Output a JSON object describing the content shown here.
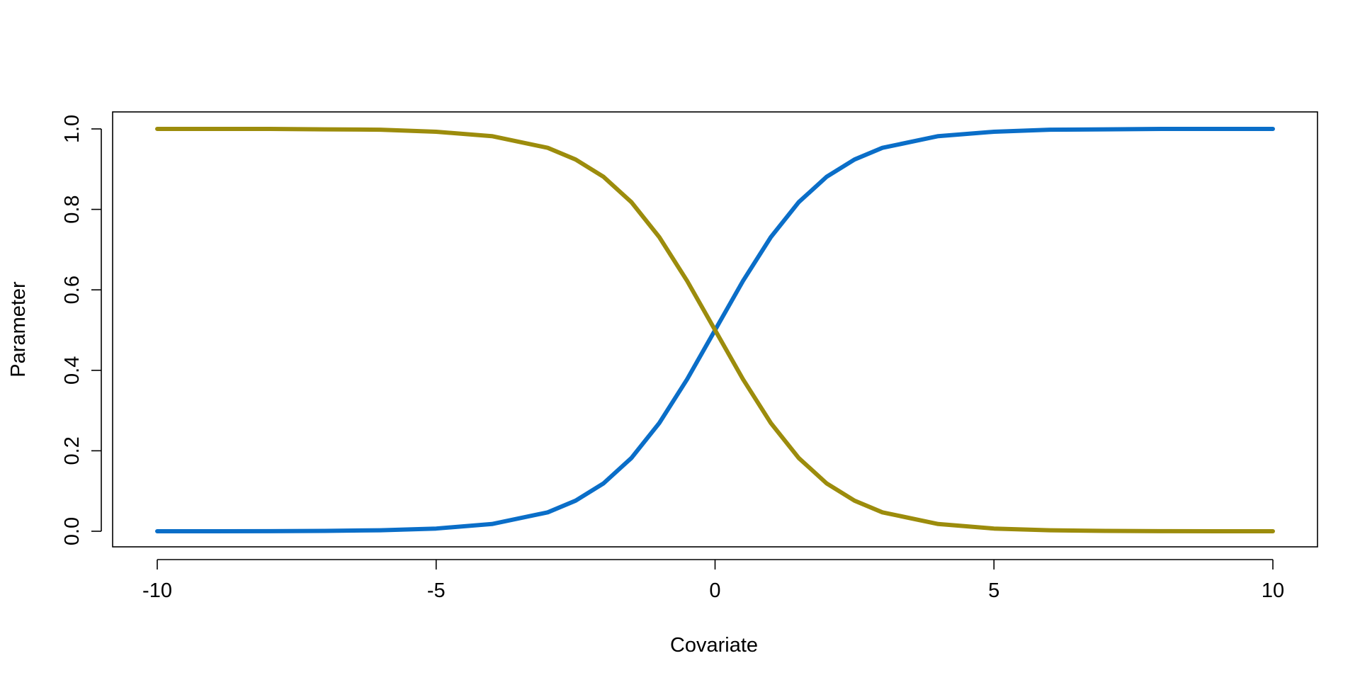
{
  "chart_data": {
    "type": "line",
    "title": "",
    "xlabel": "Covariate",
    "ylabel": "Parameter",
    "xlim": [
      -10,
      10
    ],
    "ylim": [
      0,
      1
    ],
    "x_ticks": [
      -10,
      -5,
      0,
      5,
      10
    ],
    "y_ticks": [
      0.0,
      0.2,
      0.4,
      0.6,
      0.8,
      1.0
    ],
    "x_tick_labels": [
      "-10",
      "-5",
      "0",
      "5",
      "10"
    ],
    "y_tick_labels": [
      "0.0",
      "0.2",
      "0.4",
      "0.6",
      "0.8",
      "1.0"
    ],
    "grid": false,
    "legend": "none",
    "x": [
      -10,
      -9,
      -8,
      -7,
      -6,
      -5,
      -4,
      -3,
      -2.5,
      -2,
      -1.5,
      -1,
      -0.5,
      0,
      0.5,
      1,
      1.5,
      2,
      2.5,
      3,
      4,
      5,
      6,
      7,
      8,
      9,
      10
    ],
    "series": [
      {
        "color": "#0a6ec8",
        "values": [
          0.0,
          0.0001,
          0.0003,
          0.0009,
          0.0025,
          0.0067,
          0.018,
          0.047,
          0.076,
          0.119,
          0.182,
          0.269,
          0.378,
          0.5,
          0.622,
          0.731,
          0.818,
          0.881,
          0.924,
          0.953,
          0.982,
          0.993,
          0.998,
          0.999,
          1.0,
          1.0,
          1.0
        ]
      },
      {
        "color": "#9c8c0c",
        "values": [
          1.0,
          1.0,
          1.0,
          0.999,
          0.998,
          0.993,
          0.982,
          0.953,
          0.924,
          0.881,
          0.818,
          0.731,
          0.622,
          0.5,
          0.378,
          0.269,
          0.182,
          0.119,
          0.076,
          0.047,
          0.018,
          0.0067,
          0.0025,
          0.0009,
          0.0003,
          0.0001,
          0.0
        ]
      }
    ]
  }
}
